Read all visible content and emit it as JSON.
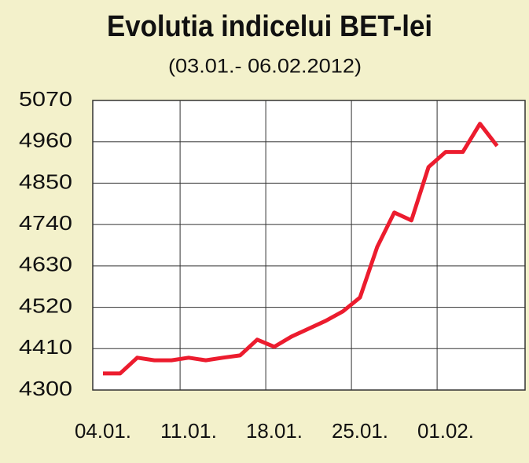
{
  "chart_data": {
    "type": "line",
    "title": "Evolutia indicelui BET-lei",
    "subtitle": "(03.01.- 06.02.2012)",
    "categories": [
      "04.01.",
      null,
      null,
      null,
      null,
      "11.01.",
      null,
      null,
      null,
      null,
      "18.01.",
      null,
      null,
      null,
      null,
      "25.01.",
      null,
      null,
      null,
      null,
      "01.02.",
      null,
      null,
      null
    ],
    "series": [
      {
        "color": "#ec1c2e",
        "values": [
          4344,
          4344,
          4386,
          4379,
          4379,
          4386,
          4379,
          4386,
          4392,
          4434,
          4415,
          4442,
          4463,
          4484,
          4509,
          4546,
          4680,
          4772,
          4751,
          4893,
          4933,
          4933,
          5008,
          4949
        ]
      }
    ],
    "ylim": [
      4300,
      5070
    ],
    "yticks": [
      4300,
      4410,
      4520,
      4630,
      4740,
      4850,
      4960,
      5070
    ],
    "grid": true
  }
}
